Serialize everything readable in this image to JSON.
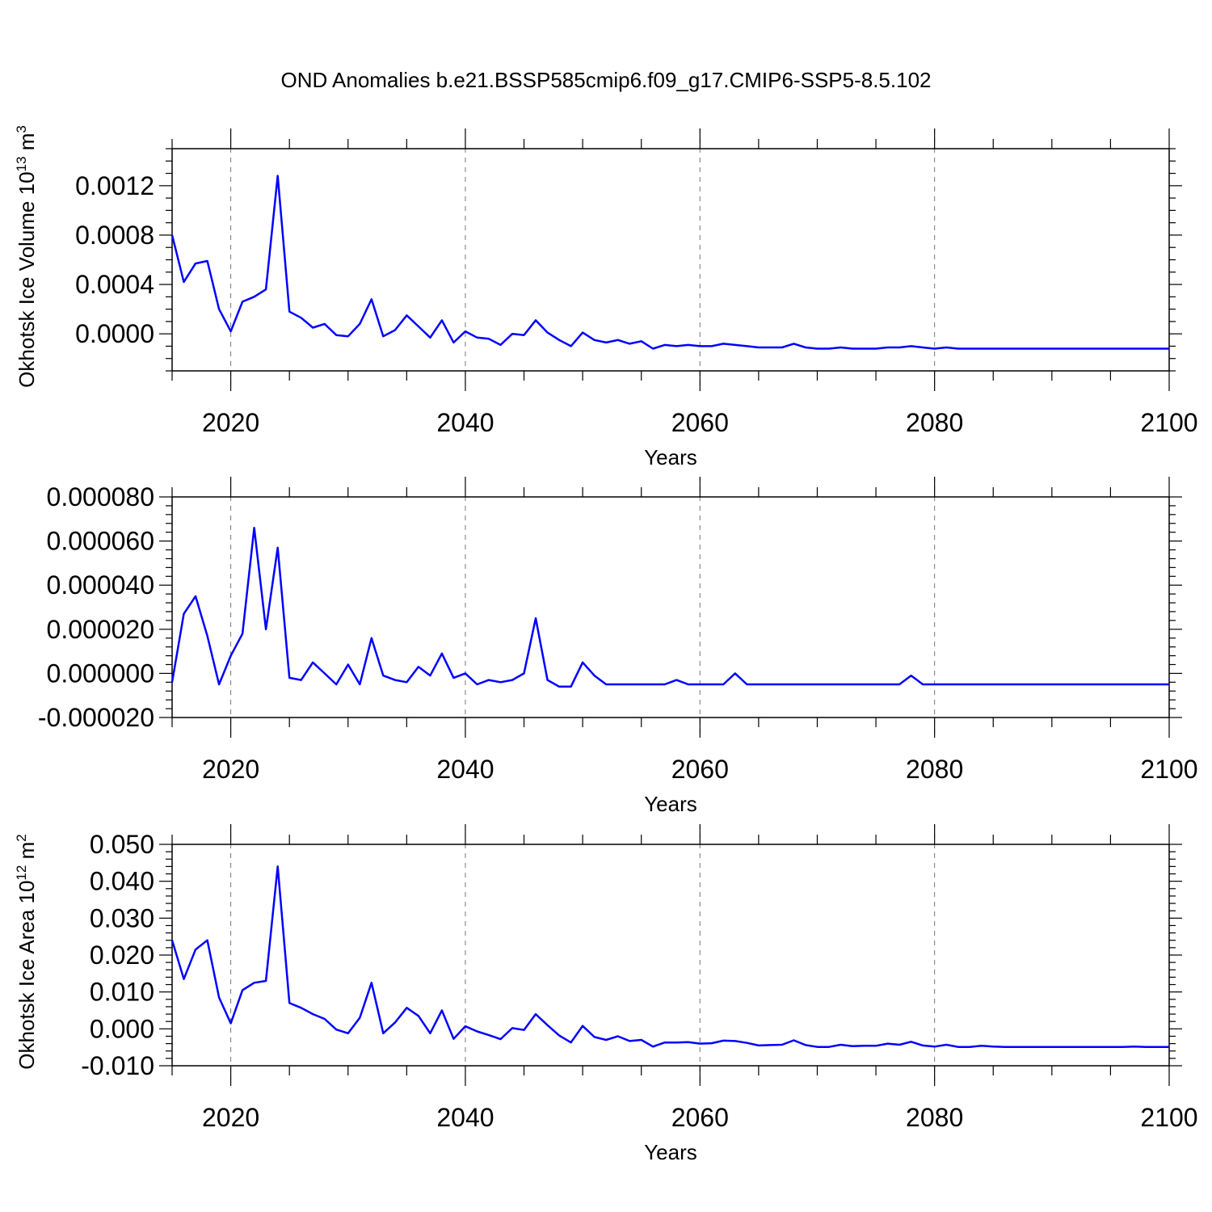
{
  "title": "OND Anomalies b.e21.BSSP585cmip6.f09_g17.CMIP6-SSP5-8.5.102",
  "line_color": "#0000ff",
  "chart_data": [
    {
      "type": "line",
      "xlabel": "Years",
      "ylabel": "Okhotsk Ice Volume 10",
      "ylabel_exp": "13",
      "ylabel_unit": " m",
      "ylabel_unit_exp": "3",
      "xlim": [
        2015,
        2100
      ],
      "ylim": [
        -0.0003,
        0.0015
      ],
      "xticks": [
        2020,
        2040,
        2060,
        2080,
        2100
      ],
      "xtick_labels": [
        "2020",
        "2040",
        "2060",
        "2080",
        "2100"
      ],
      "yticks": [
        0.0,
        0.0004,
        0.0008,
        0.0012
      ],
      "ytick_labels": [
        "0.0000",
        "0.0004",
        "0.0008",
        "0.0012"
      ],
      "yminor": 0.0001,
      "grid": "x dashed",
      "x": [
        2015,
        2016,
        2017,
        2018,
        2019,
        2020,
        2021,
        2022,
        2023,
        2024,
        2025,
        2026,
        2027,
        2028,
        2029,
        2030,
        2031,
        2032,
        2033,
        2034,
        2035,
        2036,
        2037,
        2038,
        2039,
        2040,
        2041,
        2042,
        2043,
        2044,
        2045,
        2046,
        2047,
        2048,
        2049,
        2050,
        2051,
        2052,
        2053,
        2054,
        2055,
        2056,
        2057,
        2058,
        2059,
        2060,
        2061,
        2062,
        2063,
        2064,
        2065,
        2066,
        2067,
        2068,
        2069,
        2070,
        2071,
        2072,
        2073,
        2074,
        2075,
        2076,
        2077,
        2078,
        2079,
        2080,
        2081,
        2082,
        2083,
        2084,
        2085,
        2086,
        2087,
        2088,
        2089,
        2090,
        2091,
        2092,
        2093,
        2094,
        2095,
        2096,
        2097,
        2098,
        2099,
        2100
      ],
      "y": [
        0.0008,
        0.00042,
        0.00057,
        0.00059,
        0.0002,
        2e-05,
        0.00026,
        0.0003,
        0.00036,
        0.00128,
        0.00018,
        0.00013,
        5e-05,
        8e-05,
        -1e-05,
        -2e-05,
        8e-05,
        0.00028,
        -2e-05,
        3e-05,
        0.00015,
        6e-05,
        -3e-05,
        0.00011,
        -7e-05,
        2e-05,
        -3e-05,
        -4e-05,
        -9e-05,
        0.0,
        -1e-05,
        0.00011,
        1e-05,
        -5e-05,
        -0.0001,
        1e-05,
        -5e-05,
        -7e-05,
        -5e-05,
        -8e-05,
        -6e-05,
        -0.00012,
        -9e-05,
        -0.0001,
        -9e-05,
        -0.0001,
        -0.0001,
        -8e-05,
        -9e-05,
        -0.0001,
        -0.00011,
        -0.00011,
        -0.00011,
        -8e-05,
        -0.00011,
        -0.00012,
        -0.00012,
        -0.00011,
        -0.00012,
        -0.00012,
        -0.00012,
        -0.00011,
        -0.00011,
        -0.0001,
        -0.00011,
        -0.00012,
        -0.00011,
        -0.00012,
        -0.00012,
        -0.00012,
        -0.00012,
        -0.00012,
        -0.00012,
        -0.00012,
        -0.00012,
        -0.00012,
        -0.00012,
        -0.00012,
        -0.00012,
        -0.00012,
        -0.00012,
        -0.00012,
        -0.00012,
        -0.00012,
        -0.00012,
        -0.00012
      ]
    },
    {
      "type": "line",
      "xlabel": "Years",
      "ylabel": "",
      "xlim": [
        2015,
        2100
      ],
      "ylim": [
        -2e-05,
        8e-05
      ],
      "xticks": [
        2020,
        2040,
        2060,
        2080,
        2100
      ],
      "xtick_labels": [
        "2020",
        "2040",
        "2060",
        "2080",
        "2100"
      ],
      "yticks": [
        -2e-05,
        0.0,
        2e-05,
        4e-05,
        6e-05,
        8e-05
      ],
      "ytick_labels": [
        "-0.000020",
        "0.000000",
        "0.000020",
        "0.000040",
        "0.000060",
        "0.000080"
      ],
      "yminor": 4e-06,
      "grid": "x dashed",
      "x": [
        2015,
        2016,
        2017,
        2018,
        2019,
        2020,
        2021,
        2022,
        2023,
        2024,
        2025,
        2026,
        2027,
        2028,
        2029,
        2030,
        2031,
        2032,
        2033,
        2034,
        2035,
        2036,
        2037,
        2038,
        2039,
        2040,
        2041,
        2042,
        2043,
        2044,
        2045,
        2046,
        2047,
        2048,
        2049,
        2050,
        2051,
        2052,
        2053,
        2054,
        2055,
        2056,
        2057,
        2058,
        2059,
        2060,
        2061,
        2062,
        2063,
        2064,
        2065,
        2066,
        2067,
        2068,
        2069,
        2070,
        2071,
        2072,
        2073,
        2074,
        2075,
        2076,
        2077,
        2078,
        2079,
        2080,
        2081,
        2082,
        2083,
        2084,
        2085,
        2086,
        2087,
        2088,
        2089,
        2090,
        2091,
        2092,
        2093,
        2094,
        2095,
        2096,
        2097,
        2098,
        2099,
        2100
      ],
      "y": [
        -4e-06,
        2.7e-05,
        3.5e-05,
        1.7e-05,
        -5e-06,
        8e-06,
        1.8e-05,
        6.6e-05,
        2e-05,
        5.7e-05,
        -2e-06,
        -3e-06,
        5e-06,
        0.0,
        -5e-06,
        4e-06,
        -5e-06,
        1.6e-05,
        -1e-06,
        -3e-06,
        -4e-06,
        3e-06,
        -1e-06,
        9e-06,
        -2e-06,
        0.0,
        -5e-06,
        -3e-06,
        -4e-06,
        -3e-06,
        0.0,
        2.5e-05,
        -3e-06,
        -6e-06,
        -6e-06,
        5e-06,
        -1e-06,
        -5e-06,
        -5e-06,
        -5e-06,
        -5e-06,
        -5e-06,
        -5e-06,
        -3e-06,
        -5e-06,
        -5e-06,
        -5e-06,
        -5e-06,
        0.0,
        -5e-06,
        -5e-06,
        -5e-06,
        -5e-06,
        -5e-06,
        -5e-06,
        -5e-06,
        -5e-06,
        -5e-06,
        -5e-06,
        -5e-06,
        -5e-06,
        -5e-06,
        -5e-06,
        -1e-06,
        -5e-06,
        -5e-06,
        -5e-06,
        -5e-06,
        -5e-06,
        -5e-06,
        -5e-06,
        -5e-06,
        -5e-06,
        -5e-06,
        -5e-06,
        -5e-06,
        -5e-06,
        -5e-06,
        -5e-06,
        -5e-06,
        -5e-06,
        -5e-06,
        -5e-06,
        -5e-06,
        -5e-06,
        -5e-06
      ]
    },
    {
      "type": "line",
      "xlabel": "Years",
      "ylabel": "Okhotsk Ice Area 10",
      "ylabel_exp": "12",
      "ylabel_unit": " m",
      "ylabel_unit_exp": "2",
      "xlim": [
        2015,
        2100
      ],
      "ylim": [
        -0.01,
        0.05
      ],
      "xticks": [
        2020,
        2040,
        2060,
        2080,
        2100
      ],
      "xtick_labels": [
        "2020",
        "2040",
        "2060",
        "2080",
        "2100"
      ],
      "yticks": [
        -0.01,
        0.0,
        0.01,
        0.02,
        0.03,
        0.04,
        0.05
      ],
      "ytick_labels": [
        "-0.010",
        "0.000",
        "0.010",
        "0.020",
        "0.030",
        "0.040",
        "0.050"
      ],
      "yminor": 0.002,
      "grid": "x dashed",
      "x": [
        2015,
        2016,
        2017,
        2018,
        2019,
        2020,
        2021,
        2022,
        2023,
        2024,
        2025,
        2026,
        2027,
        2028,
        2029,
        2030,
        2031,
        2032,
        2033,
        2034,
        2035,
        2036,
        2037,
        2038,
        2039,
        2040,
        2041,
        2042,
        2043,
        2044,
        2045,
        2046,
        2047,
        2048,
        2049,
        2050,
        2051,
        2052,
        2053,
        2054,
        2055,
        2056,
        2057,
        2058,
        2059,
        2060,
        2061,
        2062,
        2063,
        2064,
        2065,
        2066,
        2067,
        2068,
        2069,
        2070,
        2071,
        2072,
        2073,
        2074,
        2075,
        2076,
        2077,
        2078,
        2079,
        2080,
        2081,
        2082,
        2083,
        2084,
        2085,
        2086,
        2087,
        2088,
        2089,
        2090,
        2091,
        2092,
        2093,
        2094,
        2095,
        2096,
        2097,
        2098,
        2099,
        2100
      ],
      "y": [
        0.024,
        0.0135,
        0.0215,
        0.024,
        0.0085,
        0.0015,
        0.0105,
        0.0125,
        0.013,
        0.044,
        0.007,
        0.0057,
        0.004,
        0.0027,
        -0.0002,
        -0.0012,
        0.003,
        0.0125,
        -0.0012,
        0.0017,
        0.0057,
        0.0035,
        -0.0012,
        0.005,
        -0.0027,
        0.0007,
        -0.0007,
        -0.0017,
        -0.0028,
        0.0002,
        -0.0003,
        0.004,
        0.001,
        -0.0018,
        -0.0037,
        0.0008,
        -0.0022,
        -0.003,
        -0.002,
        -0.0033,
        -0.003,
        -0.0048,
        -0.0037,
        -0.0037,
        -0.0036,
        -0.004,
        -0.0039,
        -0.0032,
        -0.0033,
        -0.0038,
        -0.0045,
        -0.0044,
        -0.0043,
        -0.0031,
        -0.0044,
        -0.0049,
        -0.0049,
        -0.0043,
        -0.0047,
        -0.0046,
        -0.0046,
        -0.004,
        -0.0043,
        -0.0035,
        -0.0045,
        -0.0048,
        -0.0043,
        -0.0049,
        -0.0049,
        -0.0046,
        -0.0048,
        -0.0049,
        -0.0049,
        -0.0049,
        -0.0049,
        -0.0049,
        -0.0049,
        -0.0049,
        -0.0049,
        -0.0049,
        -0.0049,
        -0.0049,
        -0.0048,
        -0.0049,
        -0.0049,
        -0.0049
      ]
    }
  ]
}
